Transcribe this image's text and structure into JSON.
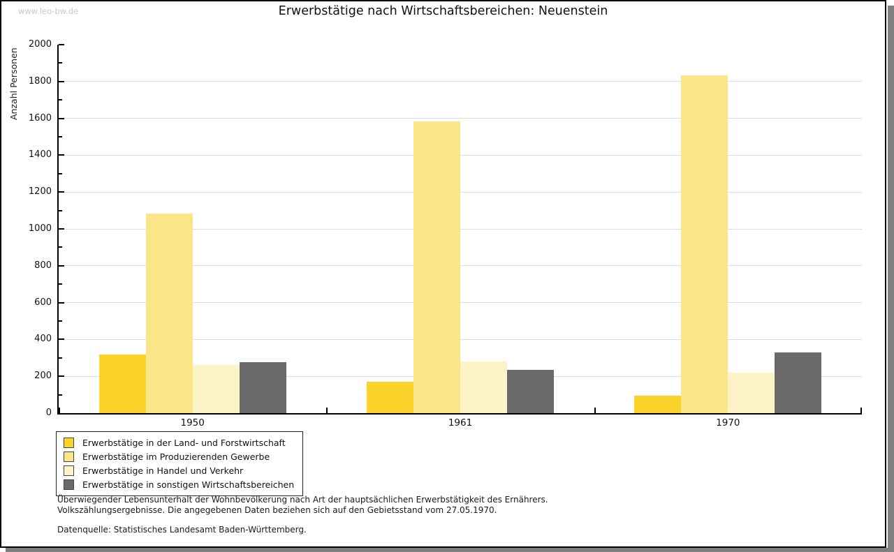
{
  "watermark": "www.leo-bw.de",
  "title": "Erwerbstätige nach Wirtschaftsbereichen: Neuenstein",
  "chart_data": {
    "type": "bar",
    "title": "Erwerbstätige nach Wirtschaftsbereichen: Neuenstein",
    "categories": [
      "1950",
      "1961",
      "1970"
    ],
    "series": [
      {
        "name": "Erwerbstätige in der Land- und Forstwirtschaft",
        "color": "#FBD32B",
        "values": [
          320,
          170,
          95
        ]
      },
      {
        "name": "Erwerbstätige im Produzierenden Gewerbe",
        "color": "#FAE588",
        "values": [
          1085,
          1585,
          1835
        ]
      },
      {
        "name": "Erwerbstätige in Handel und Verkehr",
        "color": "#FCF3C7",
        "values": [
          260,
          280,
          220
        ]
      },
      {
        "name": "Erwerbstätige in sonstigen Wirtschaftsbereichen",
        "color": "#6A6A6A",
        "values": [
          275,
          235,
          330
        ]
      }
    ],
    "xlabel": "",
    "ylabel": "Anzahl Personen",
    "ylim": [
      0,
      2000
    ],
    "ytick_step": 200,
    "ytick_minor_step": 100,
    "grid": true,
    "gridline_color": "#dcdcdc",
    "axis_color": "#000000",
    "legend_position": "bottom-left"
  },
  "footer": {
    "line1": "Überwiegender Lebensunterhalt der Wohnbevölkerung nach Art der hauptsächlichen Erwerbstätigkeit des Ernährers.",
    "line2": "Volkszählungsergebnisse. Die angegebenen Daten beziehen sich auf den Gebietsstand vom 27.05.1970.",
    "source": "Datenquelle: Statistisches Landesamt Baden-Württemberg."
  }
}
